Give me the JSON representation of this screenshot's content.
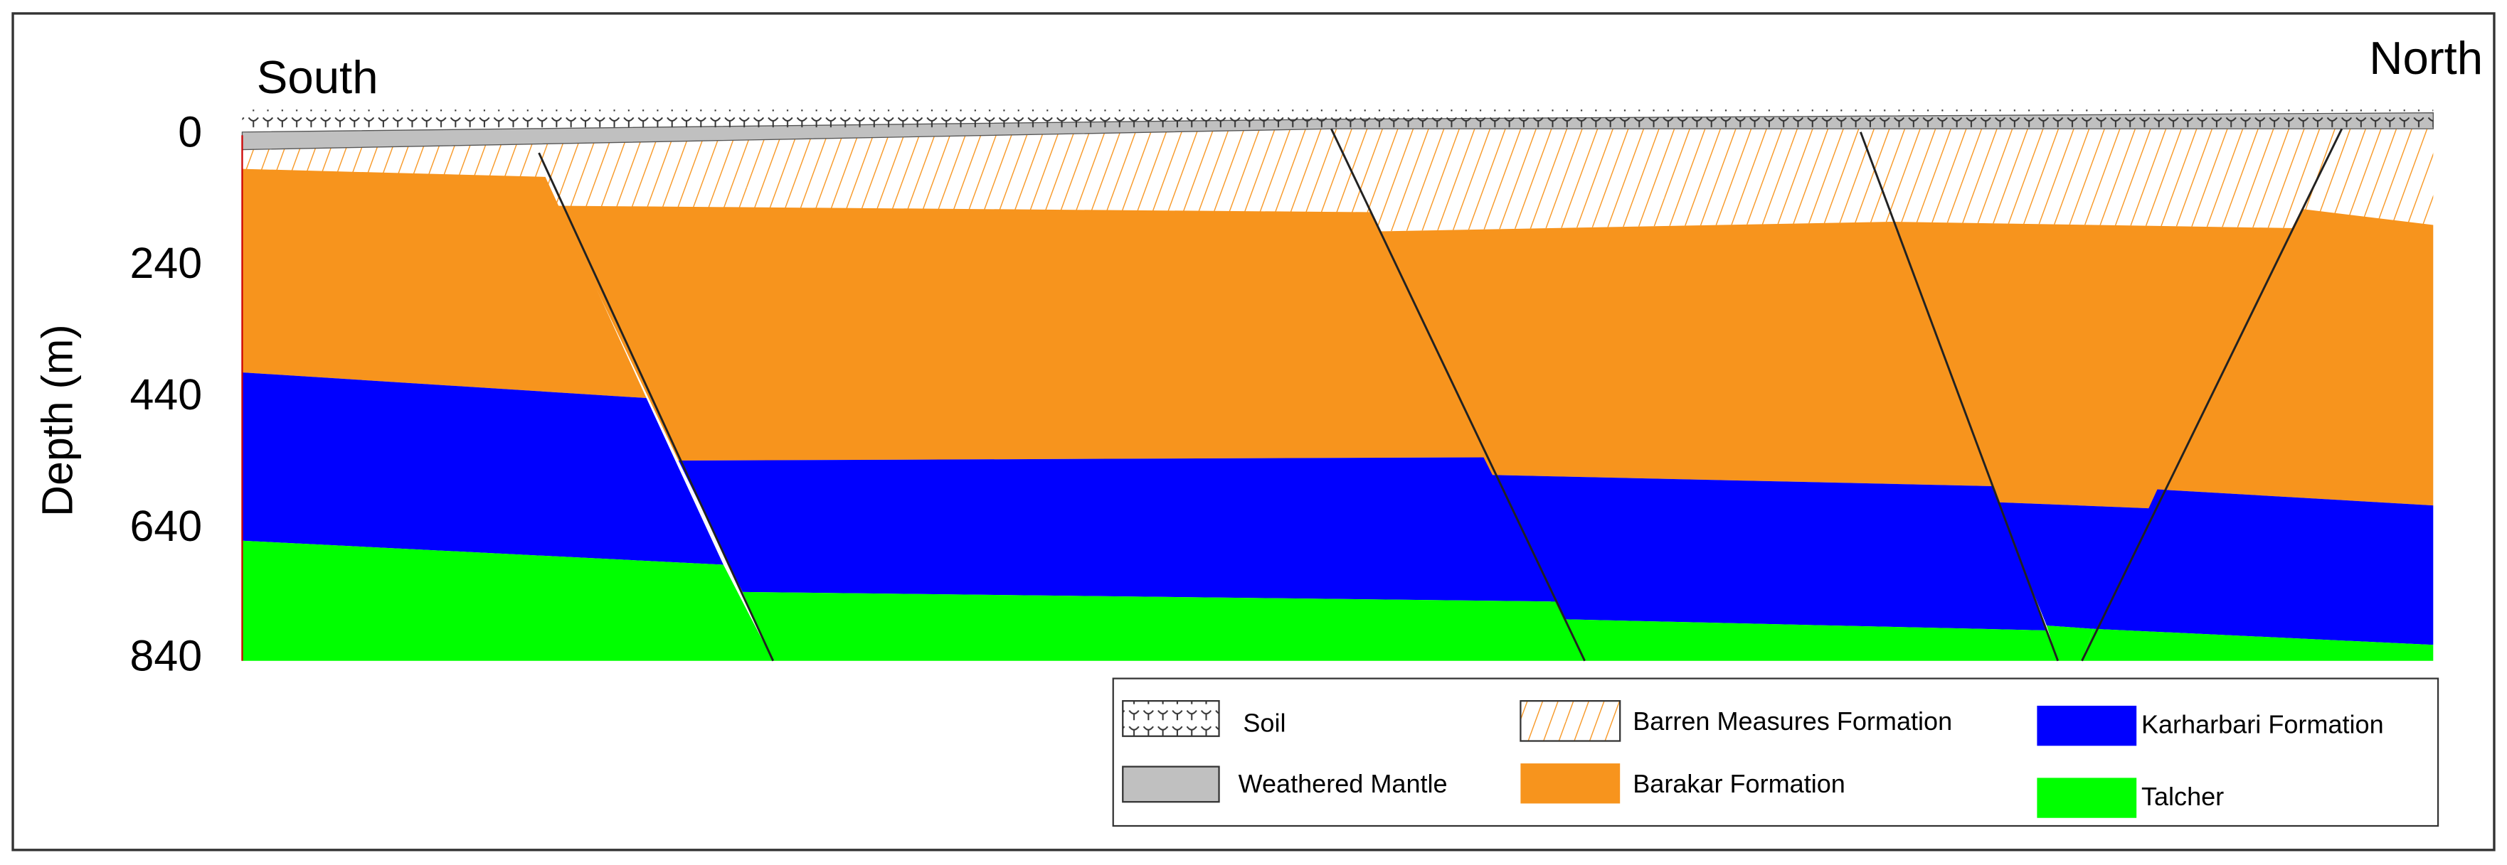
{
  "title_left": "South",
  "title_right": "North",
  "y_axis": {
    "label": "Depth (m)",
    "ticks": [
      "0",
      "240",
      "440",
      "640",
      "840"
    ]
  },
  "legend": [
    "Soil",
    "Weathered Mantle",
    "Barren Measures Formation",
    "Barakar Formation",
    "Karharbari Formation",
    "Talcher"
  ]
}
